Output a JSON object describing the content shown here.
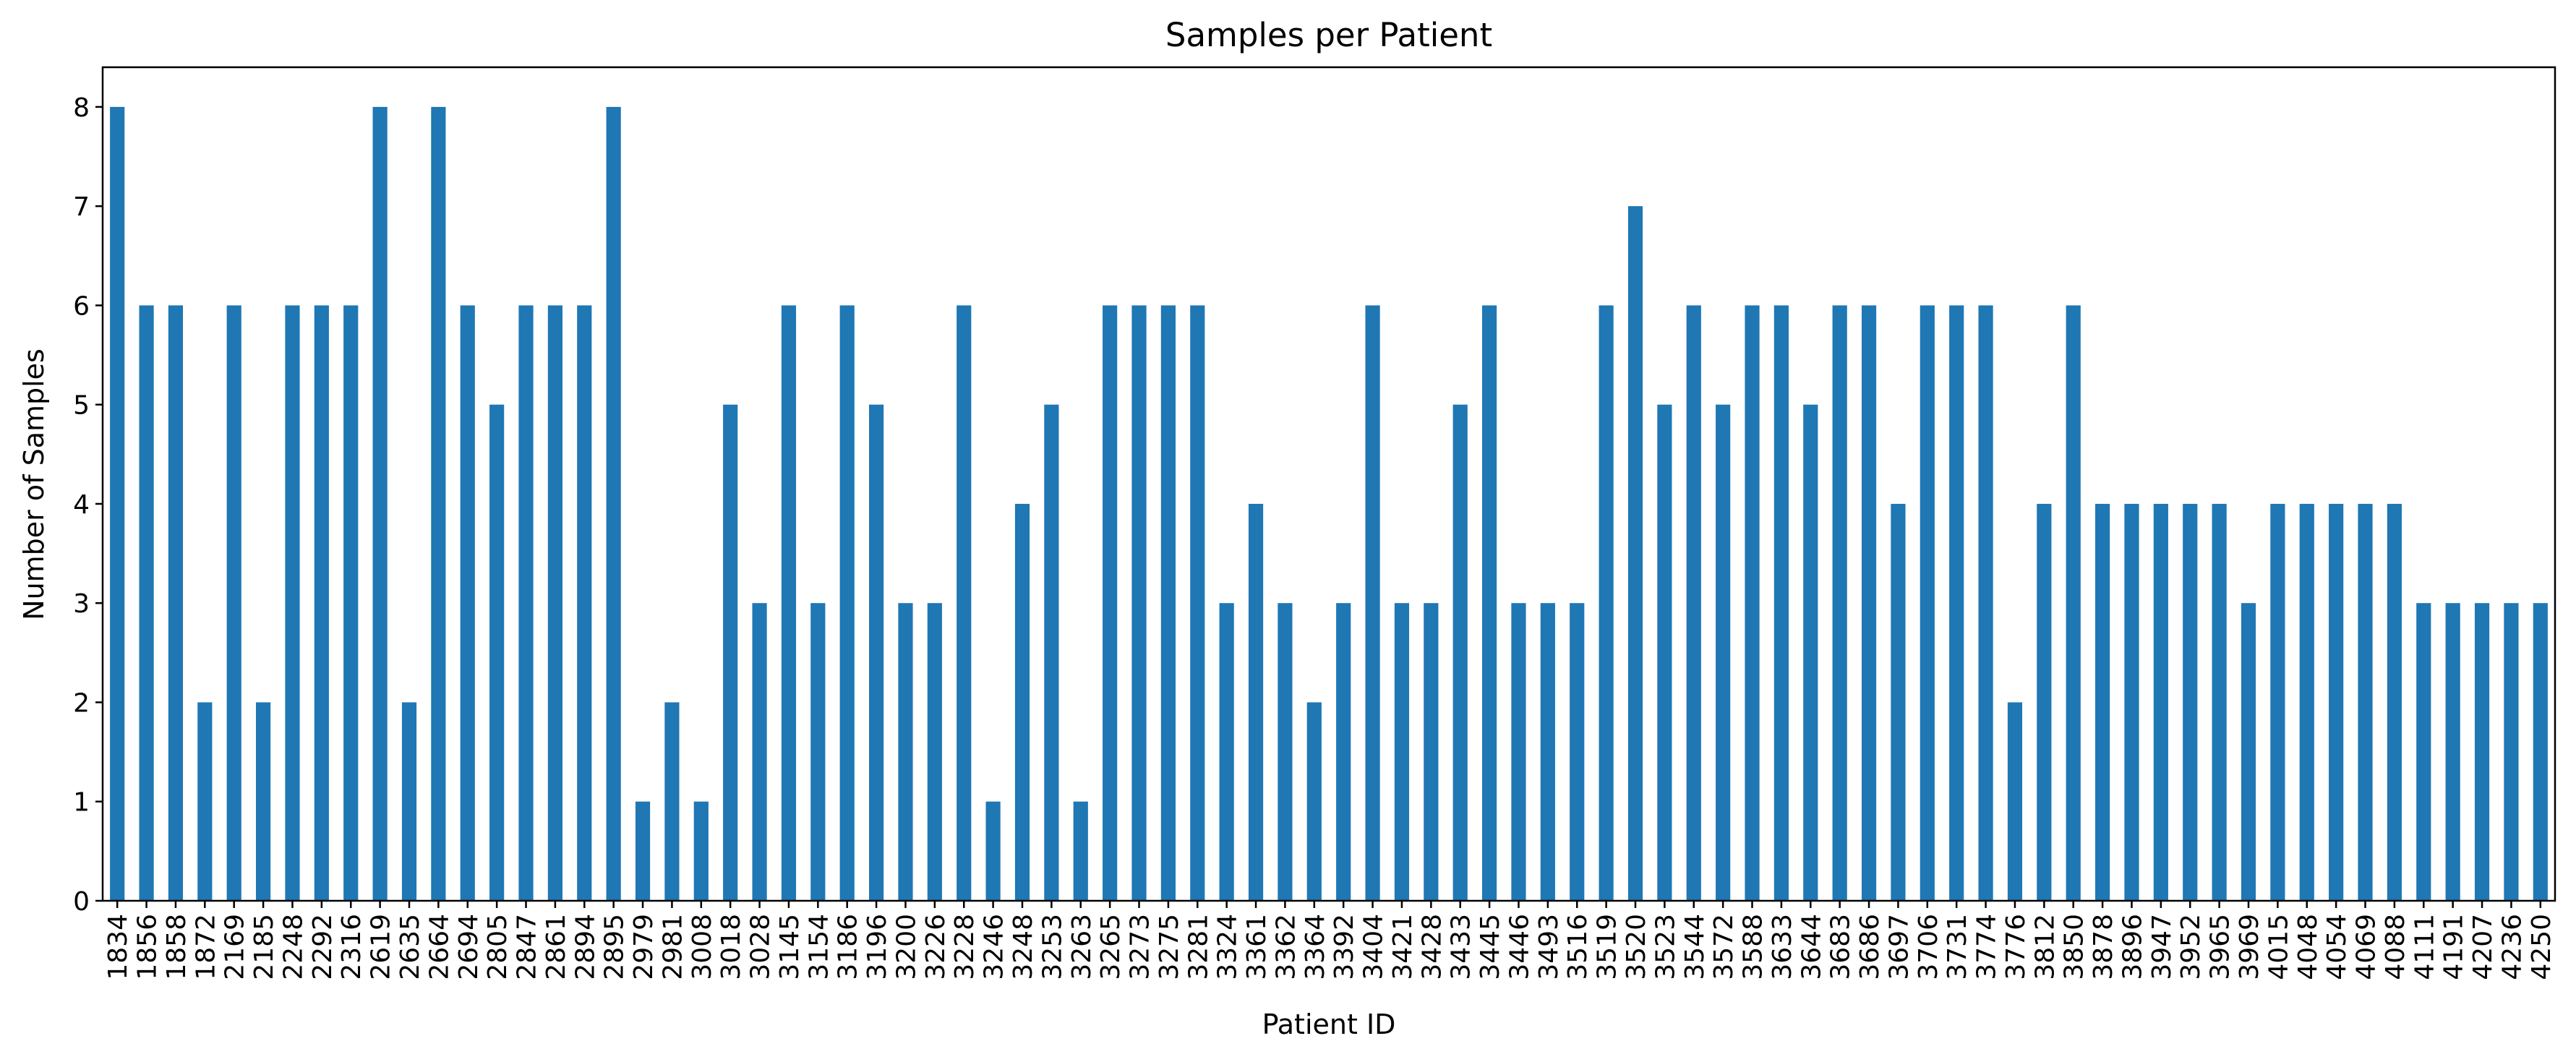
{
  "chart_data": {
    "type": "bar",
    "title": "Samples per Patient",
    "xlabel": "Patient ID",
    "ylabel": "Number of Samples",
    "ylim": [
      0,
      8.4
    ],
    "yticks": [
      0,
      1,
      2,
      3,
      4,
      5,
      6,
      7,
      8
    ],
    "grid": false,
    "bar_color": "#1f77b4",
    "categories": [
      "1834",
      "1856",
      "1858",
      "1872",
      "2169",
      "2185",
      "2248",
      "2292",
      "2316",
      "2619",
      "2635",
      "2664",
      "2694",
      "2805",
      "2847",
      "2861",
      "2894",
      "2895",
      "2979",
      "2981",
      "3008",
      "3018",
      "3028",
      "3145",
      "3154",
      "3186",
      "3196",
      "3200",
      "3226",
      "3228",
      "3246",
      "3248",
      "3253",
      "3263",
      "3265",
      "3273",
      "3275",
      "3281",
      "3324",
      "3361",
      "3362",
      "3364",
      "3392",
      "3404",
      "3421",
      "3428",
      "3433",
      "3445",
      "3446",
      "3493",
      "3516",
      "3519",
      "3520",
      "3523",
      "3544",
      "3572",
      "3588",
      "3633",
      "3644",
      "3683",
      "3686",
      "3697",
      "3706",
      "3731",
      "3774",
      "3776",
      "3812",
      "3850",
      "3878",
      "3896",
      "3947",
      "3952",
      "3965",
      "3969",
      "4015",
      "4048",
      "4054",
      "4069",
      "4088",
      "4111",
      "4191",
      "4207",
      "4236",
      "4250"
    ],
    "values": [
      8,
      6,
      6,
      2,
      6,
      2,
      6,
      6,
      6,
      8,
      2,
      8,
      6,
      5,
      6,
      6,
      6,
      8,
      1,
      2,
      1,
      5,
      3,
      6,
      3,
      6,
      5,
      3,
      3,
      6,
      1,
      4,
      5,
      1,
      6,
      6,
      6,
      6,
      3,
      4,
      3,
      2,
      3,
      6,
      3,
      3,
      5,
      6,
      3,
      3,
      3,
      6,
      7,
      5,
      6,
      5,
      6,
      6,
      5,
      6,
      6,
      4,
      6,
      6,
      6,
      2,
      4,
      6,
      4,
      4,
      4,
      4,
      4,
      3,
      4,
      4,
      4,
      4,
      4,
      3,
      3,
      3,
      3,
      3
    ]
  }
}
